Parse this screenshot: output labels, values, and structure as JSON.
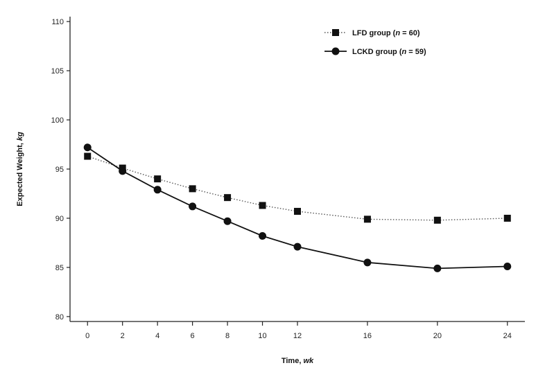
{
  "chart_data": {
    "type": "line",
    "xlabel_main": "Time, ",
    "xlabel_unit": "wk",
    "ylabel_main": "Expected Weight, ",
    "ylabel_unit": "kg",
    "x": [
      0,
      2,
      4,
      6,
      8,
      10,
      12,
      16,
      20,
      24
    ],
    "x_ticks": [
      0,
      2,
      4,
      6,
      8,
      10,
      12,
      16,
      20,
      24
    ],
    "y_ticks": [
      80,
      85,
      90,
      95,
      100,
      105,
      110
    ],
    "xlim": [
      -1,
      25
    ],
    "ylim": [
      79.5,
      110.5
    ],
    "grid": false,
    "legend_position": "top-right",
    "series": [
      {
        "name": "LFD group (n = 60)",
        "name_prefix": "LFD group (",
        "name_n": "n",
        "name_suffix": " = 60)",
        "marker": "square",
        "line_style": "dotted",
        "color": "#111111",
        "values": [
          96.3,
          95.1,
          94.0,
          93.0,
          92.1,
          91.3,
          90.7,
          89.9,
          89.8,
          90.0
        ]
      },
      {
        "name": "LCKD group (n = 59)",
        "name_prefix": "LCKD group (",
        "name_n": "n",
        "name_suffix": " = 59)",
        "marker": "circle",
        "line_style": "solid",
        "color": "#111111",
        "values": [
          97.2,
          94.8,
          92.9,
          91.2,
          89.7,
          88.2,
          87.1,
          85.5,
          84.9,
          85.1
        ]
      }
    ]
  }
}
